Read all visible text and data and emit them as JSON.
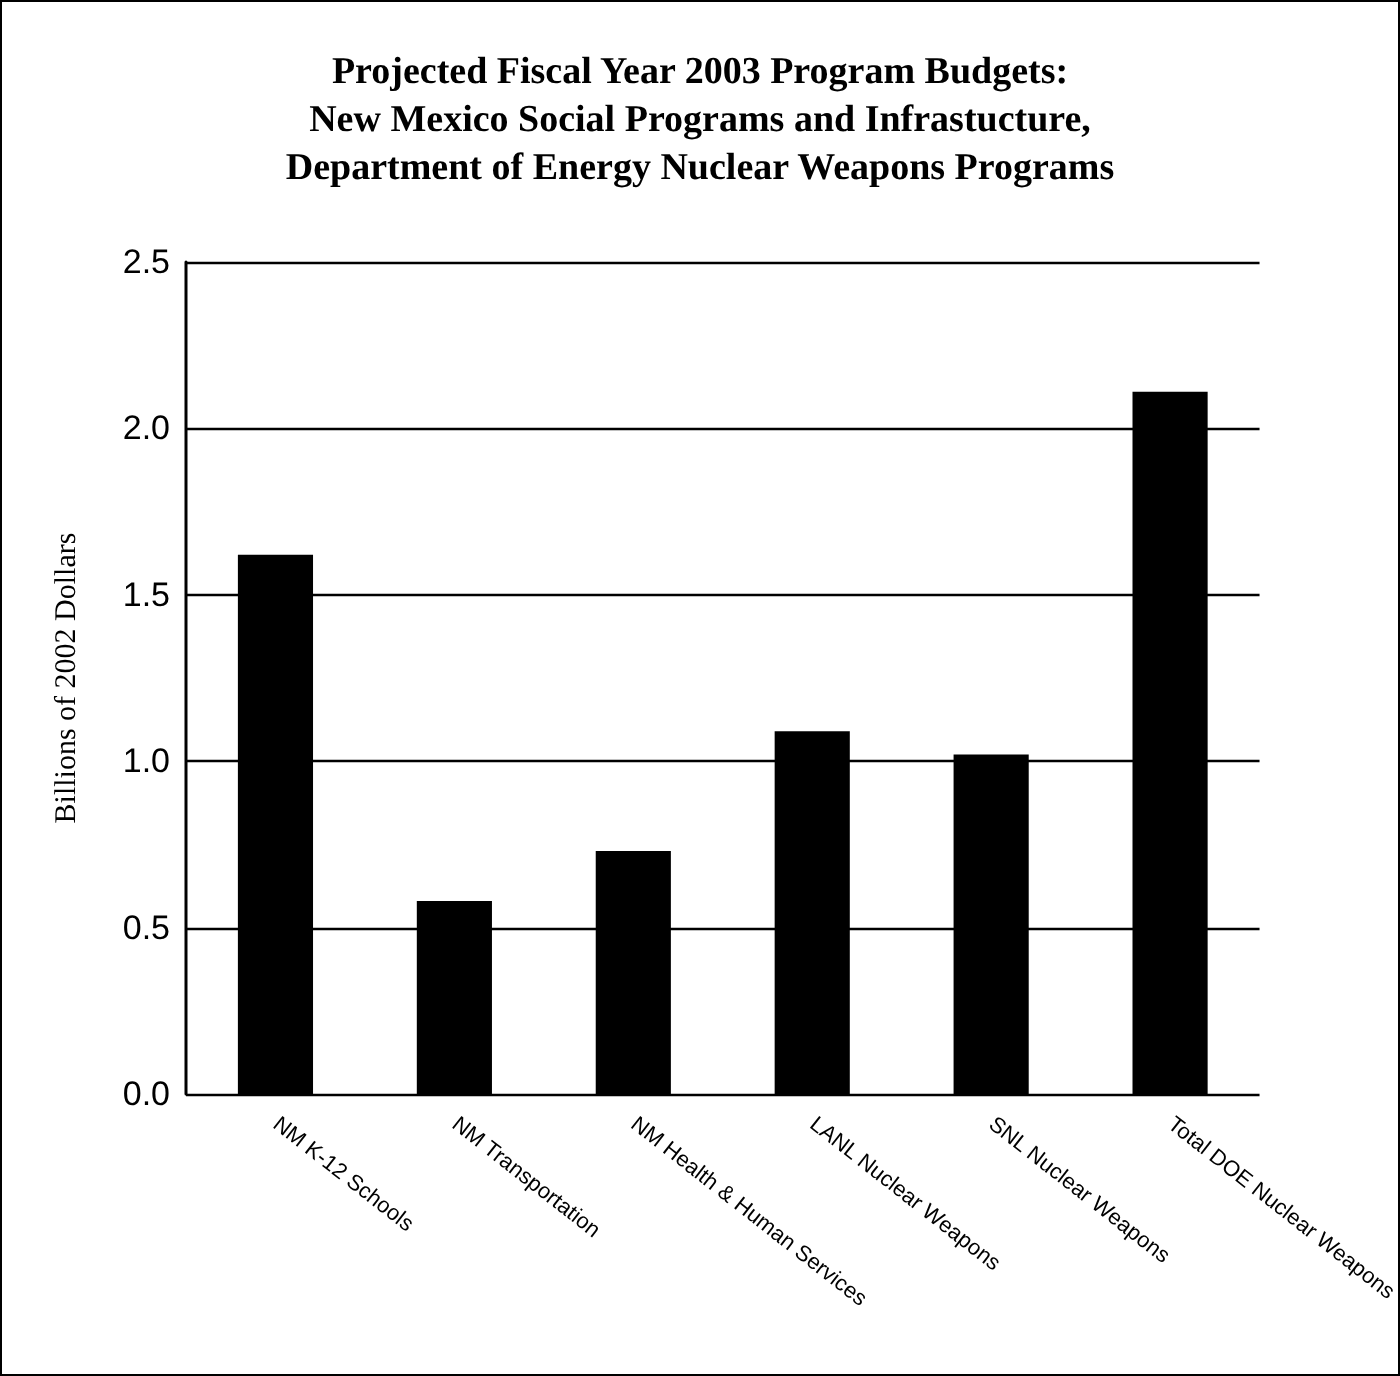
{
  "chart_data": {
    "type": "bar",
    "title": "Projected Fiscal Year 2003 Program Budgets:\nNew Mexico Social Programs and Infrastucture,\nDepartment of Energy Nuclear Weapons Programs",
    "ylabel": "Billions of 2002 Dollars",
    "categories": [
      "NM K-12 Schools",
      "NM Transportation",
      "NM Health & Human Services",
      "LANL Nuclear Weapons",
      "SNL Nuclear Weapons",
      "Total DOE Nuclear Weapons"
    ],
    "values": [
      1.62,
      0.58,
      0.73,
      1.09,
      1.02,
      2.11
    ],
    "color": "#000000",
    "ylim": [
      0,
      2.5
    ],
    "yticks": [
      {
        "value": 0,
        "label": "0.0"
      },
      0.5,
      {
        "value": 1,
        "label": "1.0"
      },
      1.5,
      {
        "value": 2,
        "label": "2.0"
      },
      2.5
    ],
    "grid": "y"
  }
}
